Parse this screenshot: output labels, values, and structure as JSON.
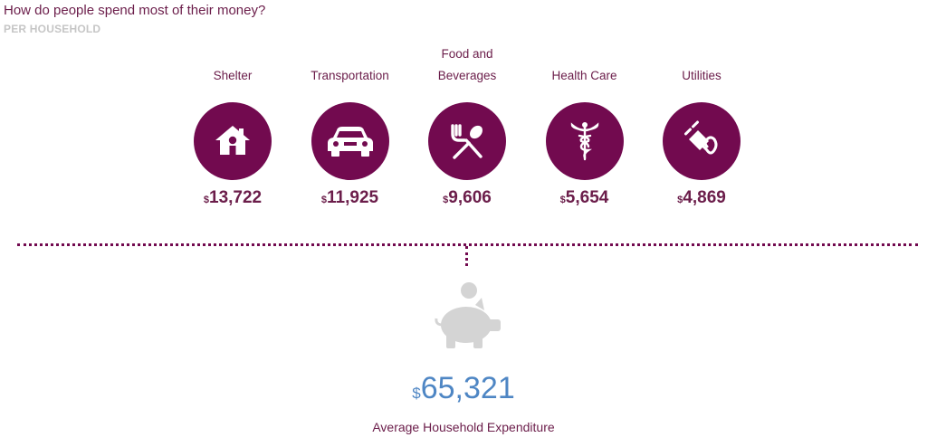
{
  "header": {
    "title": "How do people spend most of their money?",
    "subtitle": "PER HOUSEHOLD"
  },
  "colors": {
    "accent": "#720a4f",
    "text": "#6b1d4a",
    "total": "#4e86c4",
    "muted": "#c6c6c6"
  },
  "chart_data": {
    "type": "table",
    "title": "How do people spend most of their money?",
    "subtitle": "PER HOUSEHOLD",
    "currency_symbol": "$",
    "categories": [
      {
        "label_lines": [
          "Shelter"
        ],
        "icon": "house-icon",
        "value": 13722,
        "value_text": "13,722"
      },
      {
        "label_lines": [
          "Transportation"
        ],
        "icon": "car-icon",
        "value": 11925,
        "value_text": "11,925"
      },
      {
        "label_lines": [
          "Food and",
          "Beverages"
        ],
        "icon": "fork-spoon-icon",
        "value": 9606,
        "value_text": "9,606"
      },
      {
        "label_lines": [
          "Health Care"
        ],
        "icon": "caduceus-icon",
        "value": 5654,
        "value_text": "5,654"
      },
      {
        "label_lines": [
          "Utilities"
        ],
        "icon": "plug-icon",
        "value": 4869,
        "value_text": "4,869"
      }
    ],
    "total": {
      "icon": "piggy-bank-icon",
      "value": 65321,
      "value_text": "65,321",
      "label": "Average Household Expenditure"
    }
  }
}
